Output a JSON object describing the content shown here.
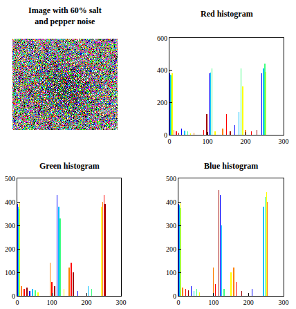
{
  "image_panel": {
    "title": "Image with 60% salt and pepper noise"
  },
  "chart_data": [
    {
      "type": "bar",
      "title": "Red histogram",
      "x": [
        1,
        3,
        5,
        7,
        12,
        18,
        25,
        32,
        40,
        48,
        56,
        65,
        90,
        98,
        104,
        108,
        112,
        120,
        140,
        150,
        160,
        172,
        183,
        188,
        193,
        200,
        215,
        230,
        243,
        247,
        251,
        254
      ],
      "values": [
        380,
        375,
        370,
        380,
        30,
        20,
        15,
        40,
        25,
        20,
        10,
        15,
        30,
        130,
        380,
        385,
        410,
        20,
        40,
        130,
        20,
        60,
        140,
        410,
        300,
        30,
        20,
        30,
        380,
        410,
        440,
        390
      ],
      "colors": [
        "#0000ff",
        "#00c0ff",
        "#40ff80",
        "#ffff00",
        "#ff8000",
        "#ff0000",
        "#a00000",
        "#0000ff",
        "#00c0ff",
        "#40ff80",
        "#ffff00",
        "#ff8000",
        "#ff0000",
        "#a00000",
        "#0000ff",
        "#00c0ff",
        "#40ff80",
        "#ffff00",
        "#ff8000",
        "#ff0000",
        "#a00000",
        "#0000ff",
        "#00c0ff",
        "#40ff80",
        "#ffff00",
        "#ff8000",
        "#ff0000",
        "#a00000",
        "#0000ff",
        "#00c0ff",
        "#40ff80",
        "#ffff00"
      ],
      "xlim": [
        0,
        300
      ],
      "xticks": [
        0,
        100,
        200,
        300
      ],
      "ylim": [
        0,
        600
      ],
      "yticks": [
        0,
        200,
        400,
        600
      ],
      "grid": false
    },
    {
      "type": "bar",
      "title": "Green histogram",
      "x": [
        1,
        3,
        5,
        7,
        12,
        20,
        28,
        36,
        44,
        52,
        60,
        95,
        100,
        108,
        115,
        120,
        124,
        135,
        150,
        156,
        162,
        175,
        205,
        215,
        243,
        247,
        251,
        254
      ],
      "values": [
        390,
        380,
        370,
        395,
        40,
        30,
        35,
        20,
        30,
        25,
        15,
        140,
        60,
        40,
        430,
        380,
        330,
        30,
        120,
        140,
        100,
        20,
        40,
        30,
        380,
        400,
        430,
        390
      ],
      "colors": [
        "#0000ff",
        "#00c0ff",
        "#40ff80",
        "#ffff00",
        "#ff8000",
        "#ff0000",
        "#a00000",
        "#0000ff",
        "#00c0ff",
        "#40ff80",
        "#ffff00",
        "#ff8000",
        "#ff0000",
        "#a00000",
        "#0000ff",
        "#00c0ff",
        "#40ff80",
        "#ffff00",
        "#ff8000",
        "#ff0000",
        "#a00000",
        "#0000ff",
        "#00c0ff",
        "#40ff80",
        "#ffff00",
        "#ff8000",
        "#ff0000",
        "#a00000"
      ],
      "xlim": [
        0,
        300
      ],
      "xticks": [
        0,
        100,
        200,
        300
      ],
      "ylim": [
        0,
        500
      ],
      "yticks": [
        0,
        100,
        200,
        300,
        400,
        500
      ],
      "grid": false
    },
    {
      "type": "bar",
      "title": "Blue histogram",
      "x": [
        1,
        3,
        5,
        7,
        12,
        20,
        28,
        36,
        44,
        52,
        60,
        100,
        106,
        115,
        119,
        123,
        130,
        150,
        158,
        165,
        180,
        210,
        243,
        247,
        251,
        254
      ],
      "values": [
        390,
        385,
        375,
        395,
        35,
        30,
        25,
        40,
        20,
        30,
        15,
        120,
        50,
        450,
        430,
        300,
        30,
        100,
        120,
        60,
        20,
        30,
        380,
        420,
        440,
        400
      ],
      "colors": [
        "#0000ff",
        "#00c0ff",
        "#40ff80",
        "#ffff00",
        "#ff8000",
        "#ff0000",
        "#a00000",
        "#0000ff",
        "#00c0ff",
        "#40ff80",
        "#ffff00",
        "#ff8000",
        "#ff0000",
        "#a00000",
        "#0000ff",
        "#00c0ff",
        "#40ff80",
        "#ffff00",
        "#ff8000",
        "#ff0000",
        "#a00000",
        "#0000ff",
        "#00c0ff",
        "#40ff80",
        "#ffff00",
        "#ff8000"
      ],
      "xlim": [
        0,
        300
      ],
      "xticks": [
        0,
        100,
        200,
        300
      ],
      "ylim": [
        0,
        500
      ],
      "yticks": [
        0,
        100,
        200,
        300,
        400,
        500
      ],
      "grid": false
    }
  ]
}
